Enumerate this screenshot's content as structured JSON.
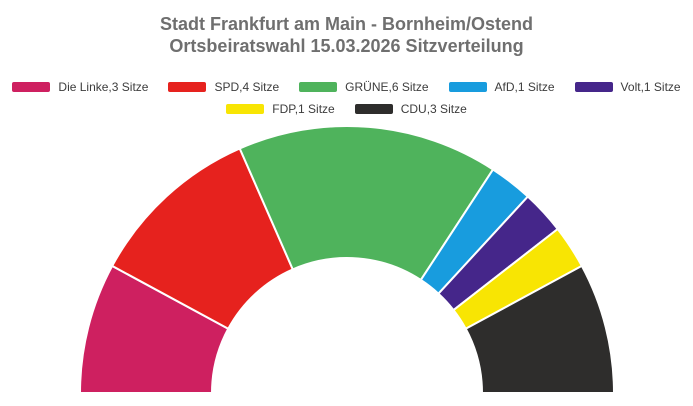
{
  "title": {
    "line1": "Stadt Frankfurt am Main - Bornheim/Ostend",
    "line2": "Ortsbeiratswahl 15.03.2026 Sitzverteilung"
  },
  "colors": {
    "title_text": "#6F6F6F",
    "legend_text": "#3C3C3C",
    "background": "#FFFFFF",
    "slice_border": "#FFFFFF"
  },
  "chart_data": {
    "type": "pie",
    "variant": "half_donut",
    "title": "Stadt Frankfurt am Main - Bornheim/Ostend Ortsbeiratswahl 15.03.2026 Sitzverteilung",
    "unit": "Sitze",
    "total_seats": 19,
    "start_angle_deg": 180,
    "end_angle_deg": 0,
    "inner_radius_ratio": 0.505,
    "legend_position": "top",
    "legend_rows": [
      5,
      2
    ],
    "series": [
      {
        "party": "Die Linke",
        "seats": 3,
        "legend_label": "Die Linke,3 Sitze",
        "color": "#CE2060"
      },
      {
        "party": "SPD",
        "seats": 4,
        "legend_label": "SPD,4 Sitze",
        "color": "#E6221E"
      },
      {
        "party": "GRÜNE",
        "seats": 6,
        "legend_label": "GRÜNE,6 Sitze",
        "color": "#4FB35C"
      },
      {
        "party": "AfD",
        "seats": 1,
        "legend_label": "AfD,1 Sitze",
        "color": "#189CDE"
      },
      {
        "party": "Volt",
        "seats": 1,
        "legend_label": "Volt,1 Sitze",
        "color": "#45268A"
      },
      {
        "party": "FDP",
        "seats": 1,
        "legend_label": "FDP,1 Sitze",
        "color": "#F8E503"
      },
      {
        "party": "CDU",
        "seats": 3,
        "legend_label": "CDU,3 Sitze",
        "color": "#2E2D2C"
      }
    ]
  }
}
